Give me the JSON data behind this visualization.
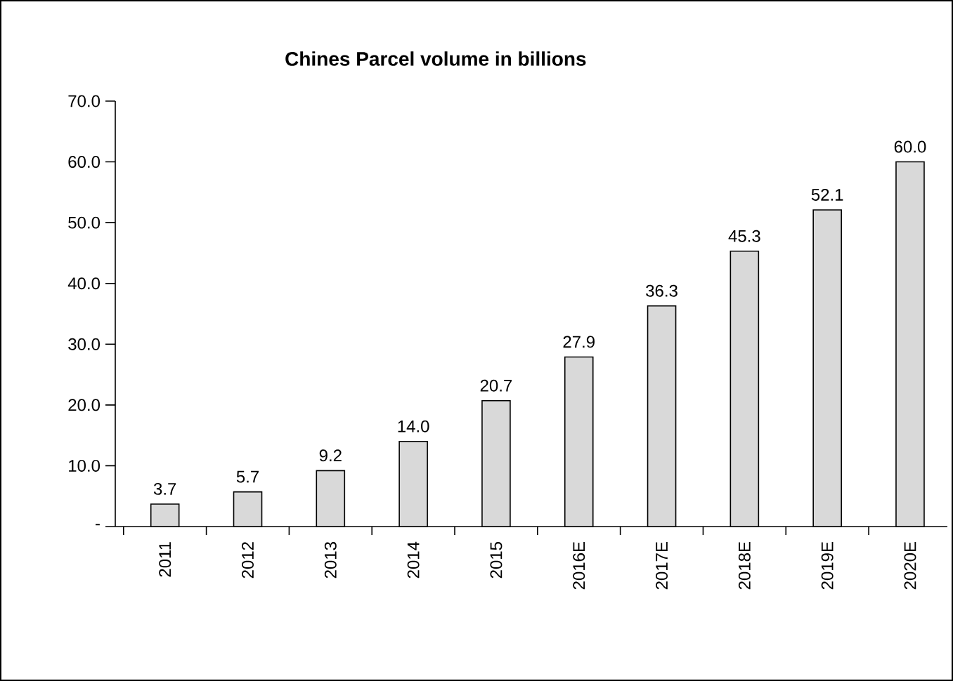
{
  "chart_data": {
    "type": "bar",
    "title": "Chines Parcel volume in billions",
    "categories": [
      "2011",
      "2012",
      "2013",
      "2014",
      "2015",
      "2016E",
      "2017E",
      "2018E",
      "2019E",
      "2020E"
    ],
    "values": [
      3.7,
      5.7,
      9.2,
      14.0,
      20.7,
      27.9,
      36.3,
      45.3,
      52.1,
      60.0
    ],
    "color": "#d9d9d9",
    "ylim": [
      0,
      70
    ],
    "yticks": [
      {
        "value": 0,
        "label": "-"
      },
      {
        "value": 10,
        "label": "10.0"
      },
      {
        "value": 20,
        "label": "20.0"
      },
      {
        "value": 30,
        "label": "30.0"
      },
      {
        "value": 40,
        "label": "40.0"
      },
      {
        "value": 50,
        "label": "50.0"
      },
      {
        "value": 60,
        "label": "60.0"
      },
      {
        "value": 70,
        "label": "70.0"
      }
    ],
    "value_labels": [
      "3.7",
      "5.7",
      "9.2",
      "14.0",
      "20.7",
      "27.9",
      "36.3",
      "45.3",
      "52.1",
      "60.0"
    ],
    "grid": false
  }
}
